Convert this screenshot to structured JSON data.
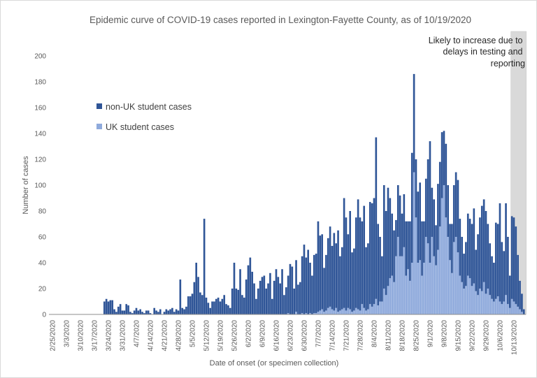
{
  "chart_data": {
    "type": "bar",
    "stacked": true,
    "title": "Epidemic curve of COVID-19 cases reported in Lexington-Fayette County, as of 10/19/2020",
    "xlabel": "Date of onset (or specimen collection)",
    "ylabel": "Number of cases",
    "ylim": [
      0,
      200
    ],
    "y_ticks": [
      0,
      20,
      40,
      60,
      80,
      100,
      120,
      140,
      160,
      180,
      200
    ],
    "grid": false,
    "legend_position": "upper-left",
    "x_tick_labels": [
      "2/25/2020",
      "3/3/2020",
      "3/10/2020",
      "3/17/2020",
      "3/24/2020",
      "3/31/2020",
      "4/7/2020",
      "4/14/2020",
      "4/21/2020",
      "4/28/2020",
      "5/5/2020",
      "5/12/2020",
      "5/19/2020",
      "5/26/2020",
      "6/2/2020",
      "6/9/2020",
      "6/16/2020",
      "6/23/2020",
      "6/30/2020",
      "7/7/2020",
      "7/14/2020",
      "7/21/2020",
      "7/28/2020",
      "8/4/2020",
      "8/11/2020",
      "8/18/2020",
      "8/25/2020",
      "9/1/2020",
      "9/8/2020",
      "9/15/2020",
      "9/22/2020",
      "9/29/2020",
      "10/6/2020",
      "10/13/2020"
    ],
    "x": [
      "2/25/2020",
      "2/26/2020",
      "2/27/2020",
      "2/28/2020",
      "2/29/2020",
      "3/1/2020",
      "3/2/2020",
      "3/3/2020",
      "3/4/2020",
      "3/5/2020",
      "3/6/2020",
      "3/7/2020",
      "3/8/2020",
      "3/9/2020",
      "3/10/2020",
      "3/11/2020",
      "3/12/2020",
      "3/13/2020",
      "3/14/2020",
      "3/15/2020",
      "3/16/2020",
      "3/17/2020",
      "3/18/2020",
      "3/19/2020",
      "3/20/2020",
      "3/21/2020",
      "3/22/2020",
      "3/23/2020",
      "3/24/2020",
      "3/25/2020",
      "3/26/2020",
      "3/27/2020",
      "3/28/2020",
      "3/29/2020",
      "3/30/2020",
      "3/31/2020",
      "4/1/2020",
      "4/2/2020",
      "4/3/2020",
      "4/4/2020",
      "4/5/2020",
      "4/6/2020",
      "4/7/2020",
      "4/8/2020",
      "4/9/2020",
      "4/10/2020",
      "4/11/2020",
      "4/12/2020",
      "4/13/2020",
      "4/14/2020",
      "4/15/2020",
      "4/16/2020",
      "4/17/2020",
      "4/18/2020",
      "4/19/2020",
      "4/20/2020",
      "4/21/2020",
      "4/22/2020",
      "4/23/2020",
      "4/24/2020",
      "4/25/2020",
      "4/26/2020",
      "4/27/2020",
      "4/28/2020",
      "4/29/2020",
      "4/30/2020",
      "5/1/2020",
      "5/2/2020",
      "5/3/2020",
      "5/4/2020",
      "5/5/2020",
      "5/6/2020",
      "5/7/2020",
      "5/8/2020",
      "5/9/2020",
      "5/10/2020",
      "5/11/2020",
      "5/12/2020",
      "5/13/2020",
      "5/14/2020",
      "5/15/2020",
      "5/16/2020",
      "5/17/2020",
      "5/18/2020",
      "5/19/2020",
      "5/20/2020",
      "5/21/2020",
      "5/22/2020",
      "5/23/2020",
      "5/24/2020",
      "5/25/2020",
      "5/26/2020",
      "5/27/2020",
      "5/28/2020",
      "5/29/2020",
      "5/30/2020",
      "5/31/2020",
      "6/1/2020",
      "6/2/2020",
      "6/3/2020",
      "6/4/2020",
      "6/5/2020",
      "6/6/2020",
      "6/7/2020",
      "6/8/2020",
      "6/9/2020",
      "6/10/2020",
      "6/11/2020",
      "6/12/2020",
      "6/13/2020",
      "6/14/2020",
      "6/15/2020",
      "6/16/2020",
      "6/17/2020",
      "6/18/2020",
      "6/19/2020",
      "6/20/2020",
      "6/21/2020",
      "6/22/2020",
      "6/23/2020",
      "6/24/2020",
      "6/25/2020",
      "6/26/2020",
      "6/27/2020",
      "6/28/2020",
      "6/29/2020",
      "6/30/2020",
      "7/1/2020",
      "7/2/2020",
      "7/3/2020",
      "7/4/2020",
      "7/5/2020",
      "7/6/2020",
      "7/7/2020",
      "7/8/2020",
      "7/9/2020",
      "7/10/2020",
      "7/11/2020",
      "7/12/2020",
      "7/13/2020",
      "7/14/2020",
      "7/15/2020",
      "7/16/2020",
      "7/17/2020",
      "7/18/2020",
      "7/19/2020",
      "7/20/2020",
      "7/21/2020",
      "7/22/2020",
      "7/23/2020",
      "7/24/2020",
      "7/25/2020",
      "7/26/2020",
      "7/27/2020",
      "7/28/2020",
      "7/29/2020",
      "7/30/2020",
      "7/31/2020",
      "8/1/2020",
      "8/2/2020",
      "8/3/2020",
      "8/4/2020",
      "8/5/2020",
      "8/6/2020",
      "8/7/2020",
      "8/8/2020",
      "8/9/2020",
      "8/10/2020",
      "8/11/2020",
      "8/12/2020",
      "8/13/2020",
      "8/14/2020",
      "8/15/2020",
      "8/16/2020",
      "8/17/2020",
      "8/18/2020",
      "8/19/2020",
      "8/20/2020",
      "8/21/2020",
      "8/22/2020",
      "8/23/2020",
      "8/24/2020",
      "8/25/2020",
      "8/26/2020",
      "8/27/2020",
      "8/28/2020",
      "8/29/2020",
      "8/30/2020",
      "8/31/2020",
      "9/1/2020",
      "9/2/2020",
      "9/3/2020",
      "9/4/2020",
      "9/5/2020",
      "9/6/2020",
      "9/7/2020",
      "9/8/2020",
      "9/9/2020",
      "9/10/2020",
      "9/11/2020",
      "9/12/2020",
      "9/13/2020",
      "9/14/2020",
      "9/15/2020",
      "9/16/2020",
      "9/17/2020",
      "9/18/2020",
      "9/19/2020",
      "9/20/2020",
      "9/21/2020",
      "9/22/2020",
      "9/23/2020",
      "9/24/2020",
      "9/25/2020",
      "9/26/2020",
      "9/27/2020",
      "9/28/2020",
      "9/29/2020",
      "9/30/2020",
      "10/1/2020",
      "10/2/2020",
      "10/3/2020",
      "10/4/2020",
      "10/5/2020",
      "10/6/2020",
      "10/7/2020",
      "10/8/2020",
      "10/9/2020",
      "10/10/2020",
      "10/11/2020",
      "10/12/2020",
      "10/13/2020",
      "10/14/2020",
      "10/15/2020",
      "10/16/2020",
      "10/17/2020",
      "10/18/2020"
    ],
    "series": [
      {
        "name": "UK student cases",
        "color": "#8FAADC",
        "values": [
          0,
          0,
          0,
          0,
          0,
          0,
          0,
          0,
          0,
          0,
          0,
          0,
          0,
          0,
          0,
          0,
          0,
          0,
          0,
          0,
          0,
          0,
          0,
          0,
          0,
          0,
          0,
          0,
          0,
          0,
          0,
          0,
          0,
          0,
          0,
          0,
          0,
          0,
          0,
          0,
          0,
          0,
          0,
          0,
          0,
          0,
          0,
          0,
          0,
          0,
          0,
          0,
          0,
          0,
          0,
          0,
          0,
          0,
          0,
          0,
          0,
          0,
          0,
          0,
          0,
          0,
          0,
          0,
          0,
          0,
          0,
          0,
          0,
          0,
          0,
          0,
          0,
          0,
          0,
          0,
          0,
          0,
          0,
          0,
          0,
          0,
          0,
          0,
          0,
          0,
          0,
          0,
          0,
          0,
          0,
          0,
          0,
          0,
          0,
          0,
          0,
          0,
          0,
          0,
          0,
          0,
          0,
          0,
          0,
          0,
          0,
          0,
          0,
          0,
          0,
          0,
          0,
          0,
          1,
          0,
          0,
          0,
          2,
          0,
          0,
          1,
          0,
          1,
          0,
          1,
          0,
          1,
          1,
          2,
          3,
          4,
          2,
          3,
          5,
          6,
          4,
          3,
          5,
          2,
          3,
          4,
          5,
          3,
          5,
          4,
          2,
          3,
          5,
          4,
          3,
          8,
          5,
          3,
          4,
          8,
          6,
          8,
          12,
          7,
          10,
          10,
          20,
          15,
          22,
          28,
          30,
          25,
          45,
          60,
          45,
          45,
          52,
          30,
          35,
          26,
          40,
          110,
          75,
          40,
          42,
          30,
          40,
          60,
          55,
          40,
          60,
          45,
          38,
          50,
          68,
          90,
          100,
          75,
          60,
          42,
          32,
          56,
          60,
          48,
          30,
          25,
          20,
          22,
          30,
          28,
          22,
          24,
          18,
          15,
          20,
          18,
          25,
          16,
          20,
          15,
          12,
          10,
          12,
          14,
          10,
          8,
          10,
          15,
          8,
          5,
          12,
          10,
          8,
          6,
          4,
          2,
          0
        ]
      },
      {
        "name": "non-UK student cases",
        "color": "#2F5597",
        "values": [
          0,
          0,
          0,
          0,
          0,
          0,
          0,
          0,
          0,
          0,
          0,
          0,
          0,
          0,
          0,
          0,
          0,
          0,
          0,
          0,
          0,
          0,
          0,
          0,
          0,
          0,
          10,
          12,
          10,
          11,
          11,
          4,
          2,
          6,
          8,
          3,
          3,
          8,
          7,
          2,
          1,
          3,
          5,
          3,
          4,
          2,
          1,
          3,
          3,
          1,
          0,
          5,
          3,
          2,
          4,
          0,
          2,
          4,
          3,
          4,
          5,
          2,
          4,
          3,
          27,
          5,
          4,
          6,
          14,
          14,
          16,
          25,
          40,
          29,
          17,
          15,
          74,
          13,
          9,
          5,
          10,
          10,
          12,
          13,
          10,
          12,
          15,
          8,
          7,
          5,
          20,
          40,
          20,
          19,
          35,
          15,
          13,
          27,
          38,
          44,
          33,
          24,
          12,
          20,
          26,
          29,
          30,
          20,
          24,
          32,
          12,
          26,
          35,
          29,
          24,
          35,
          15,
          21,
          29,
          39,
          37,
          20,
          40,
          23,
          25,
          44,
          54,
          43,
          50,
          39,
          30,
          45,
          46,
          70,
          58,
          58,
          34,
          43,
          54,
          62,
          49,
          60,
          50,
          63,
          42,
          48,
          85,
          72,
          57,
          76,
          46,
          48,
          70,
          85,
          72,
          64,
          79,
          49,
          51,
          79,
          80,
          82,
          125,
          63,
          50,
          35,
          80,
          65,
          76,
          62,
          48,
          40,
          28,
          40,
          47,
          33,
          41,
          42,
          37,
          46,
          85,
          76,
          45,
          55,
          60,
          42,
          32,
          45,
          65,
          94,
          38,
          44,
          31,
          51,
          50,
          51,
          42,
          57,
          40,
          28,
          38,
          44,
          50,
          56,
          44,
          35,
          27,
          34,
          48,
          46,
          48,
          58,
          32,
          47,
          55,
          66,
          64,
          64,
          50,
          40,
          33,
          30,
          59,
          56,
          76,
          48,
          39,
          71,
          52,
          25,
          64,
          65,
          60,
          40,
          22,
          14,
          4
        ]
      }
    ],
    "shaded_region": {
      "x_range": [
        "10/12/2020",
        "10/18/2020"
      ],
      "color": "#D9D9D9",
      "label_lines": [
        "Likely to increase due to",
        "delays in testing and",
        "reporting"
      ]
    },
    "colors": {
      "text": "#595959",
      "axis": "#8C8C8C"
    }
  }
}
